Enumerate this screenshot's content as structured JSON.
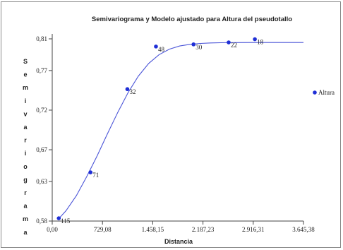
{
  "chart_data": {
    "type": "scatter",
    "title": "Semivariograma y Modelo ajustado  para  Altura del pseudotallo",
    "xlabel": "Distancia",
    "ylabel": "Semivariograma",
    "xlim": [
      0,
      3645.38
    ],
    "ylim": [
      0.58,
      0.81
    ],
    "xticks": [
      0,
      729.08,
      1458.15,
      2187.23,
      2916.31,
      3645.38
    ],
    "xtick_labels": [
      "0,00",
      "729,08",
      "1.458,15",
      "2.187,23",
      "2.916,31",
      "3.645,38"
    ],
    "yticks": [
      0.58,
      0.63,
      0.67,
      0.72,
      0.77,
      0.81
    ],
    "ytick_labels": [
      "0,58",
      "0,63",
      "0,67",
      "0,72",
      "0,77",
      "0,81"
    ],
    "grid": false,
    "legend_position": "right",
    "series": [
      {
        "name": "Altura",
        "color": "#1f2fd6",
        "points": [
          {
            "x": 95,
            "y": 0.5835,
            "label": "115"
          },
          {
            "x": 555,
            "y": 0.6415,
            "label": "71"
          },
          {
            "x": 1090,
            "y": 0.7465,
            "label": "32"
          },
          {
            "x": 1505,
            "y": 0.8003,
            "label": "48"
          },
          {
            "x": 2050,
            "y": 0.803,
            "label": "30"
          },
          {
            "x": 2560,
            "y": 0.8055,
            "label": "22"
          },
          {
            "x": 2940,
            "y": 0.8095,
            "label": "18"
          }
        ]
      }
    ],
    "model_curve": {
      "color": "#4b55d8",
      "x": [
        95,
        200,
        350,
        500,
        650,
        800,
        950,
        1100,
        1250,
        1400,
        1550,
        1700,
        1850,
        2000,
        2150,
        2300,
        2500,
        2700,
        2900,
        3100,
        3300,
        3645.38
      ],
      "y": [
        0.583,
        0.593,
        0.612,
        0.636,
        0.662,
        0.69,
        0.717,
        0.742,
        0.763,
        0.779,
        0.79,
        0.797,
        0.801,
        0.803,
        0.8042,
        0.8048,
        0.8052,
        0.8053,
        0.8054,
        0.8054,
        0.8054,
        0.8054
      ]
    }
  }
}
